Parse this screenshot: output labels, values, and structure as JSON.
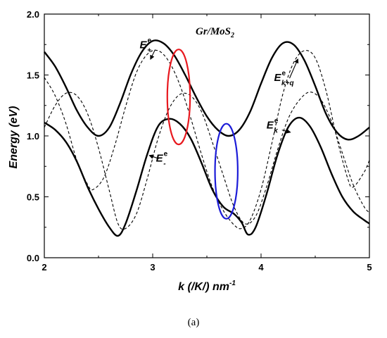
{
  "chart_data": {
    "type": "line",
    "title": "Gr/MoS2",
    "xlabel": "k (/K/) nm-1",
    "ylabel": "Energy (eV)",
    "xlim": [
      2,
      5
    ],
    "ylim": [
      0,
      2
    ],
    "xticks": [
      "2",
      "3",
      "4",
      "5"
    ],
    "yticks": [
      "0.0",
      "0.5",
      "1.0",
      "1.5",
      "2.0"
    ],
    "grid": false,
    "series": [
      {
        "name": "E+e",
        "style": "solid",
        "points": [
          [
            2.0,
            1.69
          ],
          [
            2.1,
            1.57
          ],
          [
            2.2,
            1.4
          ],
          [
            2.3,
            1.21
          ],
          [
            2.4,
            1.07
          ],
          [
            2.5,
            1.0
          ],
          [
            2.6,
            1.07
          ],
          [
            2.7,
            1.27
          ],
          [
            2.8,
            1.51
          ],
          [
            2.9,
            1.69
          ],
          [
            3.0,
            1.78
          ],
          [
            3.1,
            1.76
          ],
          [
            3.2,
            1.66
          ],
          [
            3.3,
            1.5
          ],
          [
            3.4,
            1.32
          ],
          [
            3.5,
            1.16
          ],
          [
            3.6,
            1.05
          ],
          [
            3.7,
            1.0
          ],
          [
            3.8,
            1.05
          ],
          [
            3.9,
            1.2
          ],
          [
            4.0,
            1.43
          ],
          [
            4.1,
            1.64
          ],
          [
            4.2,
            1.76
          ],
          [
            4.3,
            1.75
          ],
          [
            4.4,
            1.62
          ],
          [
            4.5,
            1.41
          ],
          [
            4.6,
            1.18
          ],
          [
            4.7,
            1.03
          ],
          [
            4.8,
            0.97
          ],
          [
            4.9,
            1.0
          ],
          [
            5.0,
            1.07
          ]
        ]
      },
      {
        "name": "E-e",
        "style": "solid",
        "points": [
          [
            2.0,
            1.11
          ],
          [
            2.1,
            1.05
          ],
          [
            2.2,
            0.95
          ],
          [
            2.3,
            0.79
          ],
          [
            2.4,
            0.58
          ],
          [
            2.5,
            0.4
          ],
          [
            2.6,
            0.25
          ],
          [
            2.68,
            0.18
          ],
          [
            2.75,
            0.28
          ],
          [
            2.85,
            0.55
          ],
          [
            2.95,
            0.85
          ],
          [
            3.05,
            1.08
          ],
          [
            3.15,
            1.14
          ],
          [
            3.25,
            1.1
          ],
          [
            3.35,
            0.98
          ],
          [
            3.45,
            0.78
          ],
          [
            3.55,
            0.56
          ],
          [
            3.65,
            0.42
          ],
          [
            3.75,
            0.36
          ],
          [
            3.82,
            0.29
          ],
          [
            3.88,
            0.19
          ],
          [
            3.95,
            0.25
          ],
          [
            4.05,
            0.52
          ],
          [
            4.15,
            0.84
          ],
          [
            4.25,
            1.07
          ],
          [
            4.35,
            1.15
          ],
          [
            4.45,
            1.08
          ],
          [
            4.55,
            0.91
          ],
          [
            4.65,
            0.69
          ],
          [
            4.75,
            0.5
          ],
          [
            4.85,
            0.38
          ],
          [
            4.95,
            0.31
          ],
          [
            5.0,
            0.28
          ]
        ]
      },
      {
        "name": "Ek+qe",
        "style": "dashed",
        "points": [
          [
            2.0,
            1.48
          ],
          [
            2.1,
            1.33
          ],
          [
            2.2,
            1.1
          ],
          [
            2.3,
            0.8
          ],
          [
            2.4,
            0.6
          ],
          [
            2.45,
            0.56
          ],
          [
            2.55,
            0.66
          ],
          [
            2.65,
            0.92
          ],
          [
            2.75,
            1.24
          ],
          [
            2.85,
            1.52
          ],
          [
            2.95,
            1.67
          ],
          [
            3.05,
            1.7
          ],
          [
            3.15,
            1.61
          ],
          [
            3.25,
            1.42
          ],
          [
            3.35,
            1.15
          ],
          [
            3.45,
            0.85
          ],
          [
            3.55,
            0.58
          ],
          [
            3.65,
            0.39
          ],
          [
            3.75,
            0.27
          ],
          [
            3.82,
            0.24
          ],
          [
            3.9,
            0.31
          ],
          [
            4.0,
            0.56
          ],
          [
            4.1,
            0.94
          ],
          [
            4.2,
            1.34
          ],
          [
            4.3,
            1.6
          ],
          [
            4.4,
            1.7
          ],
          [
            4.5,
            1.64
          ],
          [
            4.6,
            1.37
          ],
          [
            4.7,
            0.98
          ],
          [
            4.8,
            0.65
          ],
          [
            4.85,
            0.58
          ],
          [
            4.95,
            0.7
          ],
          [
            5.0,
            0.8
          ]
        ]
      },
      {
        "name": "Eke",
        "style": "dashed",
        "points": [
          [
            2.0,
            1.07
          ],
          [
            2.1,
            1.25
          ],
          [
            2.2,
            1.35
          ],
          [
            2.3,
            1.33
          ],
          [
            2.4,
            1.18
          ],
          [
            2.5,
            0.9
          ],
          [
            2.6,
            0.55
          ],
          [
            2.68,
            0.28
          ],
          [
            2.75,
            0.24
          ],
          [
            2.85,
            0.36
          ],
          [
            2.95,
            0.65
          ],
          [
            3.05,
            0.98
          ],
          [
            3.15,
            1.22
          ],
          [
            3.25,
            1.34
          ],
          [
            3.35,
            1.33
          ],
          [
            3.45,
            1.2
          ],
          [
            3.55,
            0.95
          ],
          [
            3.65,
            0.68
          ],
          [
            3.75,
            0.42
          ],
          [
            3.85,
            0.28
          ],
          [
            3.95,
            0.34
          ],
          [
            4.05,
            0.58
          ],
          [
            4.15,
            0.88
          ],
          [
            4.25,
            1.14
          ],
          [
            4.35,
            1.29
          ],
          [
            4.45,
            1.36
          ],
          [
            4.55,
            1.3
          ],
          [
            4.65,
            1.12
          ],
          [
            4.75,
            0.86
          ],
          [
            4.85,
            0.6
          ],
          [
            4.95,
            0.42
          ],
          [
            5.0,
            0.37
          ]
        ]
      }
    ],
    "annotations": [
      {
        "id": "ann-eplus",
        "base": "E",
        "sup": "e",
        "sub": "+",
        "at": [
          2.88,
          1.72
        ],
        "arrow_to": [
          2.98,
          1.63
        ]
      },
      {
        "id": "ann-eminus",
        "base": "E",
        "sup": "e",
        "sub": "-",
        "at": [
          3.03,
          0.79
        ],
        "arrow_to": [
          2.97,
          0.84
        ]
      },
      {
        "id": "ann-ekq",
        "base": "E",
        "sup": "e",
        "sub": "k+q",
        "at": [
          4.12,
          1.45
        ],
        "arrow_to": [
          4.34,
          1.63
        ]
      },
      {
        "id": "ann-ek",
        "base": "E",
        "sup": "e",
        "sub": "k",
        "at": [
          4.05,
          1.06
        ],
        "arrow_to": [
          4.27,
          1.03
        ]
      }
    ],
    "ellipses": [
      {
        "name": "red-ellipse",
        "color": "#e8191f",
        "center": [
          3.24,
          1.32
        ],
        "rx_data": 0.105,
        "ry_data": 0.39
      },
      {
        "name": "blue-ellipse",
        "color": "#1c1cd8",
        "center": [
          3.68,
          0.71
        ],
        "rx_data": 0.105,
        "ry_data": 0.39
      }
    ],
    "panel_label": "(a)"
  }
}
